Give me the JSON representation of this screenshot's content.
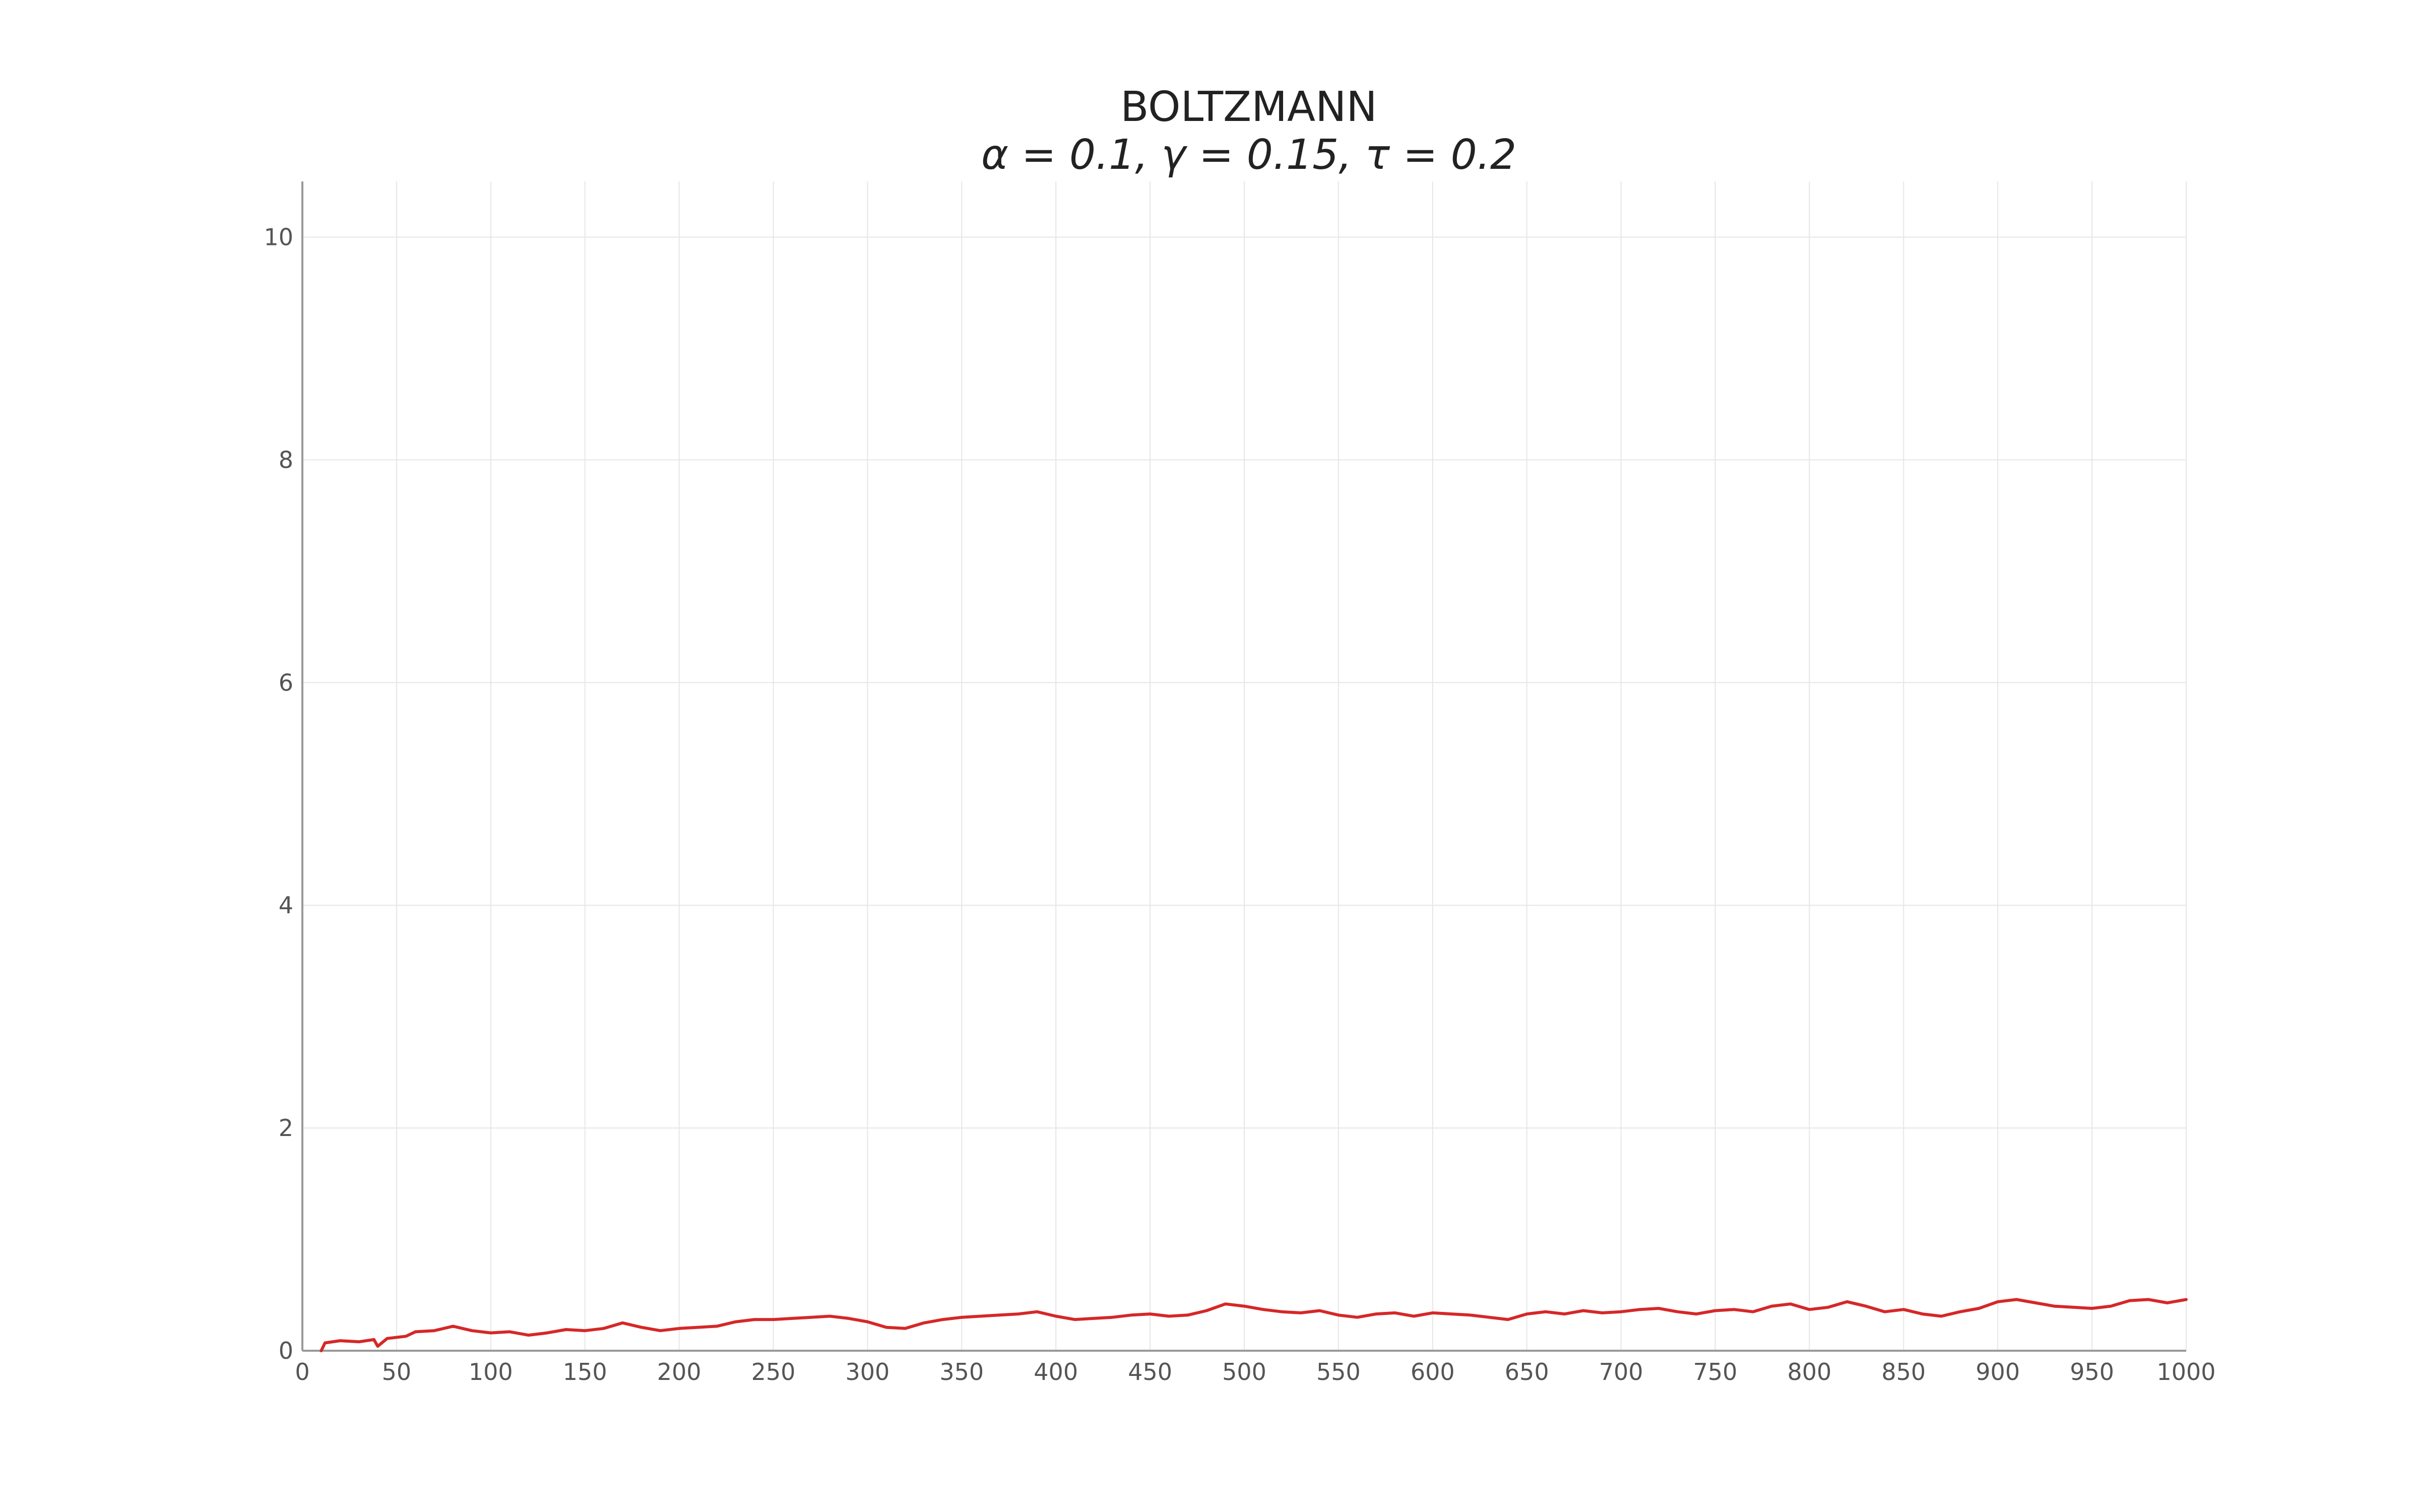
{
  "chart_data": {
    "type": "line",
    "title": "BOLTZMANN",
    "subtitle": "α = 0.1, γ = 0.15, τ = 0.2",
    "xlabel": "",
    "ylabel": "",
    "xlim": [
      0,
      1000
    ],
    "ylim": [
      0,
      10.5
    ],
    "x_ticks": [
      0,
      50,
      100,
      150,
      200,
      250,
      300,
      350,
      400,
      450,
      500,
      550,
      600,
      650,
      700,
      750,
      800,
      850,
      900,
      950,
      1000
    ],
    "y_ticks": [
      0,
      2,
      4,
      6,
      8,
      10
    ],
    "grid": true,
    "legend": "none",
    "series": [
      {
        "color": "#d62728",
        "x": [
          10,
          12,
          20,
          30,
          38,
          40,
          45,
          55,
          60,
          70,
          80,
          90,
          100,
          110,
          120,
          130,
          140,
          150,
          160,
          170,
          180,
          190,
          200,
          210,
          220,
          230,
          240,
          250,
          260,
          270,
          280,
          290,
          300,
          310,
          320,
          330,
          340,
          350,
          360,
          370,
          380,
          390,
          400,
          410,
          420,
          430,
          440,
          450,
          460,
          470,
          480,
          490,
          500,
          510,
          520,
          530,
          540,
          550,
          560,
          570,
          580,
          590,
          600,
          610,
          620,
          630,
          640,
          650,
          660,
          670,
          680,
          690,
          700,
          710,
          720,
          730,
          740,
          750,
          760,
          770,
          780,
          790,
          800,
          810,
          820,
          830,
          840,
          850,
          860,
          870,
          880,
          890,
          900,
          910,
          920,
          930,
          940,
          950,
          960,
          970,
          980,
          990,
          1000
        ],
        "y": [
          0.0,
          0.07,
          0.09,
          0.08,
          0.1,
          0.04,
          0.11,
          0.13,
          0.17,
          0.18,
          0.22,
          0.18,
          0.16,
          0.17,
          0.14,
          0.16,
          0.19,
          0.18,
          0.2,
          0.25,
          0.21,
          0.18,
          0.2,
          0.21,
          0.22,
          0.26,
          0.28,
          0.28,
          0.29,
          0.3,
          0.31,
          0.29,
          0.26,
          0.21,
          0.2,
          0.25,
          0.28,
          0.3,
          0.31,
          0.32,
          0.33,
          0.35,
          0.31,
          0.28,
          0.29,
          0.3,
          0.32,
          0.33,
          0.31,
          0.32,
          0.36,
          0.42,
          0.4,
          0.37,
          0.35,
          0.34,
          0.36,
          0.32,
          0.3,
          0.33,
          0.34,
          0.31,
          0.34,
          0.33,
          0.32,
          0.3,
          0.28,
          0.33,
          0.35,
          0.33,
          0.36,
          0.34,
          0.35,
          0.37,
          0.38,
          0.35,
          0.33,
          0.36,
          0.37,
          0.35,
          0.4,
          0.42,
          0.37,
          0.39,
          0.44,
          0.4,
          0.35,
          0.37,
          0.33,
          0.31,
          0.35,
          0.38,
          0.44,
          0.46,
          0.43,
          0.4,
          0.39,
          0.38,
          0.4,
          0.45,
          0.46,
          0.43,
          0.46
        ]
      }
    ]
  }
}
